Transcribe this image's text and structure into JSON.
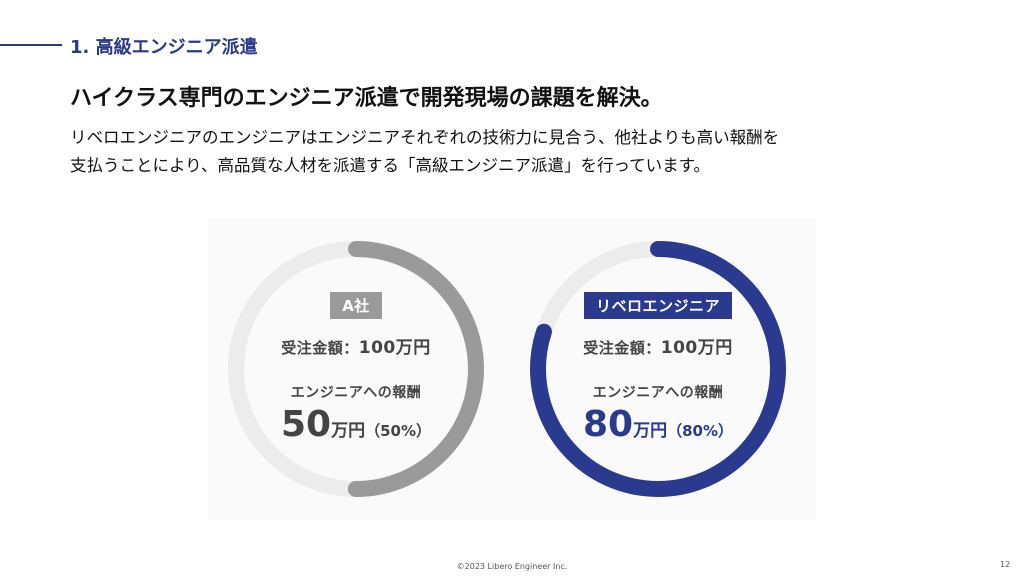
{
  "section": {
    "title": "1. 高級エンジニア派遣"
  },
  "headline": "ハイクラス専門のエンジニア派遣で開発現場の課題を解決。",
  "body": {
    "line1": "リベロエンジニアのエンジニアはエンジニアそれぞれの技術力に見合う、他社よりも高い報酬を",
    "line2": "支払うことにより、高品質な人材を派遣する「高級エンジニア派遣」を行っています。"
  },
  "comparison": [
    {
      "badge": "A社",
      "order_label": "受注金額：",
      "order_value": "100万円",
      "pay_label": "エンジニアへの報酬",
      "pay_value": "50",
      "pay_unit": "万円",
      "pay_pct": "（50%）",
      "ratio": 0.5,
      "color": "#9a9a9a"
    },
    {
      "badge": "リベロエンジニア",
      "order_label": "受注金額：",
      "order_value": "100万円",
      "pay_label": "エンジニアへの報酬",
      "pay_value": "80",
      "pay_unit": "万円",
      "pay_pct": "（80%）",
      "ratio": 0.8,
      "color": "#2a3a8f"
    }
  ],
  "colors": {
    "accent": "#2a3a86",
    "track": "#ececec"
  },
  "footer": {
    "copyright": "©2023 Libero Engineer Inc.",
    "page": "12"
  }
}
